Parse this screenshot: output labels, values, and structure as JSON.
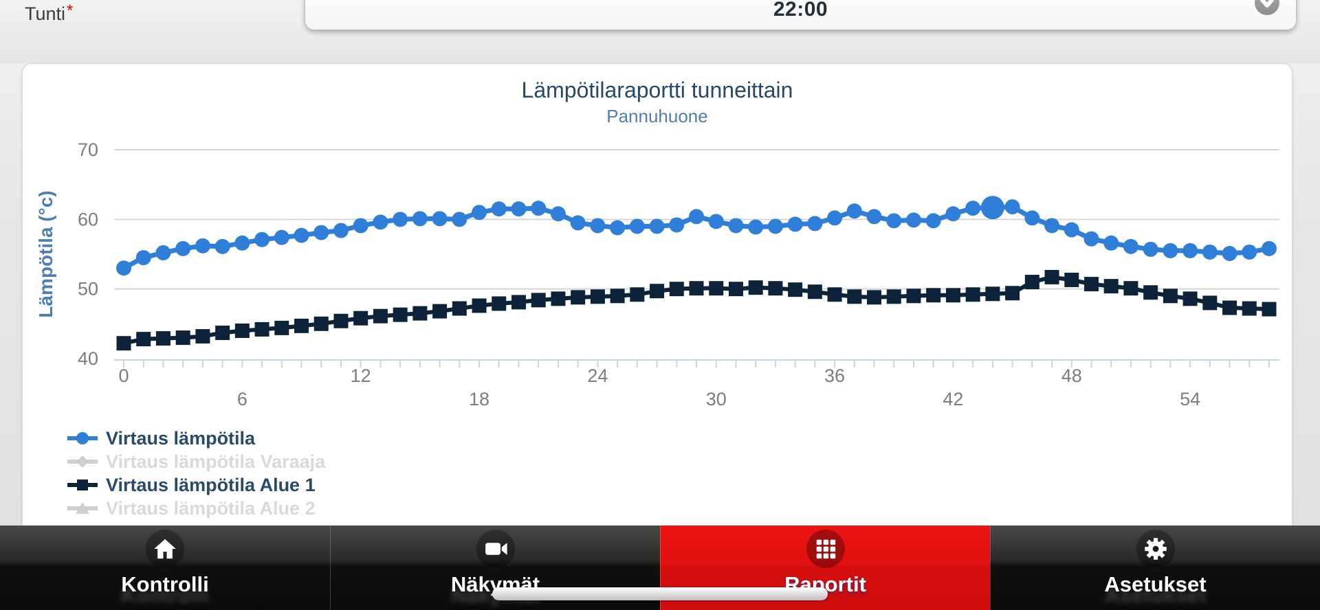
{
  "topbar": {
    "field_label": "Tunti",
    "required_mark": "*",
    "dropdown_value": "22:00"
  },
  "chart_data": {
    "type": "line",
    "title": "Lämpötilaraportti tunneittain",
    "subtitle": "Pannuhuone",
    "ylabel": "Lämpötila (°c)",
    "xlabel": "",
    "x_unit": "hour",
    "ylim": [
      40,
      70
    ],
    "yticks": [
      40,
      50,
      60,
      70
    ],
    "xticks_row1": [
      0,
      12,
      24,
      36,
      48
    ],
    "xticks_row2": [
      6,
      18,
      30,
      42,
      54
    ],
    "grid": true,
    "legend_position": "bottom-left",
    "colors": {
      "grid_line": "#d6d6d6",
      "axis_line": "#c7d6e6",
      "tick_label": "#7d7d7d",
      "title": "#26486b",
      "subtitle": "#4d7fb5",
      "legend_text_active": "#274b6d",
      "legend_text_disabled": "#d9d9d9"
    },
    "series": [
      {
        "name": "Virtaus lämpötila",
        "color": "#2f7ed8",
        "marker": "circle",
        "visible": true,
        "highlight_index": 44,
        "values": [
          53.0,
          54.5,
          55.2,
          55.8,
          56.2,
          56.1,
          56.6,
          57.1,
          57.4,
          57.7,
          58.1,
          58.4,
          59.1,
          59.6,
          60.0,
          60.1,
          60.1,
          60.0,
          61.0,
          61.5,
          61.5,
          61.6,
          60.8,
          59.5,
          59.1,
          58.8,
          59.0,
          59.0,
          59.2,
          60.4,
          59.7,
          59.1,
          58.9,
          59.0,
          59.3,
          59.4,
          60.2,
          61.2,
          60.4,
          59.8,
          59.9,
          59.8,
          60.8,
          61.6,
          61.7,
          61.8,
          60.2,
          59.1,
          58.5,
          57.2,
          56.6,
          56.1,
          55.7,
          55.5,
          55.5,
          55.3,
          55.1,
          55.3,
          55.8
        ]
      },
      {
        "name": "Virtaus lämpötila Varaaja",
        "color": "#cfcfcf",
        "marker": "diamond",
        "visible": false,
        "values": []
      },
      {
        "name": "Virtaus lämpötila Alue 1",
        "color": "#0d233a",
        "marker": "square",
        "visible": true,
        "values": [
          42.2,
          42.8,
          42.9,
          43.0,
          43.2,
          43.7,
          44.0,
          44.2,
          44.4,
          44.7,
          45.0,
          45.4,
          45.8,
          46.1,
          46.3,
          46.5,
          46.8,
          47.2,
          47.6,
          47.9,
          48.1,
          48.4,
          48.6,
          48.8,
          48.9,
          49.0,
          49.2,
          49.7,
          50.0,
          50.1,
          50.1,
          50.0,
          50.2,
          50.1,
          49.9,
          49.6,
          49.2,
          48.9,
          48.8,
          48.9,
          49.0,
          49.1,
          49.1,
          49.2,
          49.3,
          49.4,
          51.0,
          51.7,
          51.3,
          50.7,
          50.4,
          50.1,
          49.5,
          49.0,
          48.6,
          48.0,
          47.3,
          47.2,
          47.1
        ]
      },
      {
        "name": "Virtaus lämpötila Alue 2",
        "color": "#cfcfcf",
        "marker": "triangle",
        "visible": false,
        "values": []
      }
    ]
  },
  "nav": {
    "active_color": "#e01111",
    "tabs": [
      {
        "label": "Kontrolli",
        "icon": "home-icon",
        "active": false
      },
      {
        "label": "Näkymät",
        "icon": "video-camera-icon",
        "active": false
      },
      {
        "label": "Raportit",
        "icon": "grid-icon",
        "active": true
      },
      {
        "label": "Asetukset",
        "icon": "gear-icon",
        "active": false
      }
    ]
  }
}
